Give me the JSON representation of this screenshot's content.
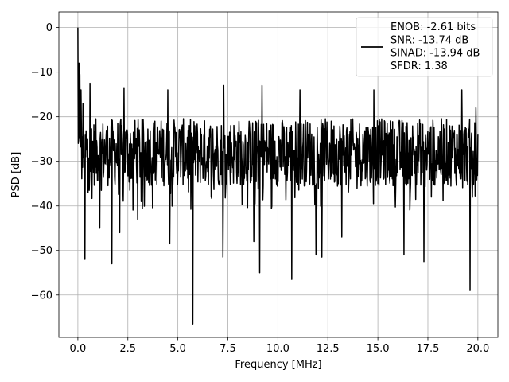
{
  "chart_data": {
    "type": "line",
    "title": "",
    "xlabel": "Frequency [MHz]",
    "ylabel": "PSD [dB]",
    "xlim": [
      -0.95,
      21.0
    ],
    "ylim": [
      -69.5,
      3.5
    ],
    "xticks": [
      0.0,
      2.5,
      5.0,
      7.5,
      10.0,
      12.5,
      15.0,
      17.5,
      20.0
    ],
    "xtick_labels": [
      "0.0",
      "2.5",
      "5.0",
      "7.5",
      "10.0",
      "12.5",
      "15.0",
      "17.5",
      "20.0"
    ],
    "yticks": [
      0,
      -10,
      -20,
      -30,
      -40,
      -50,
      -60
    ],
    "ytick_labels": [
      "0",
      "−10",
      "−20",
      "−30",
      "−40",
      "−50",
      "−60"
    ],
    "grid": true,
    "legend_position": "top-right",
    "series": [
      {
        "color": "#000000",
        "x_range": [
          0.0,
          20.0
        ],
        "sample_count": 1024,
        "noise_floor_db": -28,
        "noise_upper_db": -20,
        "noise_lower_db": -35,
        "peaks": [
          {
            "x": 0.0,
            "y": 0.0
          },
          {
            "x": 0.05,
            "y": -8.0
          },
          {
            "x": 0.1,
            "y": -10.5
          },
          {
            "x": 0.15,
            "y": -14.0
          },
          {
            "x": 0.25,
            "y": -17.0
          },
          {
            "x": 0.6,
            "y": -12.5
          },
          {
            "x": 2.3,
            "y": -13.5
          },
          {
            "x": 4.5,
            "y": -14.0
          },
          {
            "x": 7.3,
            "y": -13.0
          },
          {
            "x": 9.2,
            "y": -13.0
          },
          {
            "x": 11.1,
            "y": -14.0
          },
          {
            "x": 14.8,
            "y": -14.0
          },
          {
            "x": 19.2,
            "y": -14.0
          },
          {
            "x": 19.9,
            "y": -18.0
          }
        ],
        "dips": [
          {
            "x": 0.35,
            "y": -52.0
          },
          {
            "x": 0.5,
            "y": -37.0
          },
          {
            "x": 1.1,
            "y": -45.0
          },
          {
            "x": 1.7,
            "y": -53.0
          },
          {
            "x": 2.1,
            "y": -46.0
          },
          {
            "x": 3.0,
            "y": -43.0
          },
          {
            "x": 4.6,
            "y": -48.5
          },
          {
            "x": 5.75,
            "y": -66.5
          },
          {
            "x": 7.25,
            "y": -51.5
          },
          {
            "x": 8.8,
            "y": -48.0
          },
          {
            "x": 9.1,
            "y": -55.0
          },
          {
            "x": 10.7,
            "y": -56.5
          },
          {
            "x": 11.9,
            "y": -51.0
          },
          {
            "x": 12.2,
            "y": -51.5
          },
          {
            "x": 13.2,
            "y": -47.0
          },
          {
            "x": 16.3,
            "y": -51.0
          },
          {
            "x": 17.3,
            "y": -52.5
          },
          {
            "x": 19.6,
            "y": -59.0
          }
        ]
      }
    ],
    "legend": {
      "lines": [
        "ENOB: -2.61 bits",
        "SNR: -13.74 dB",
        "SINAD: -13.94 dB",
        "SFDR: 1.38"
      ]
    }
  }
}
